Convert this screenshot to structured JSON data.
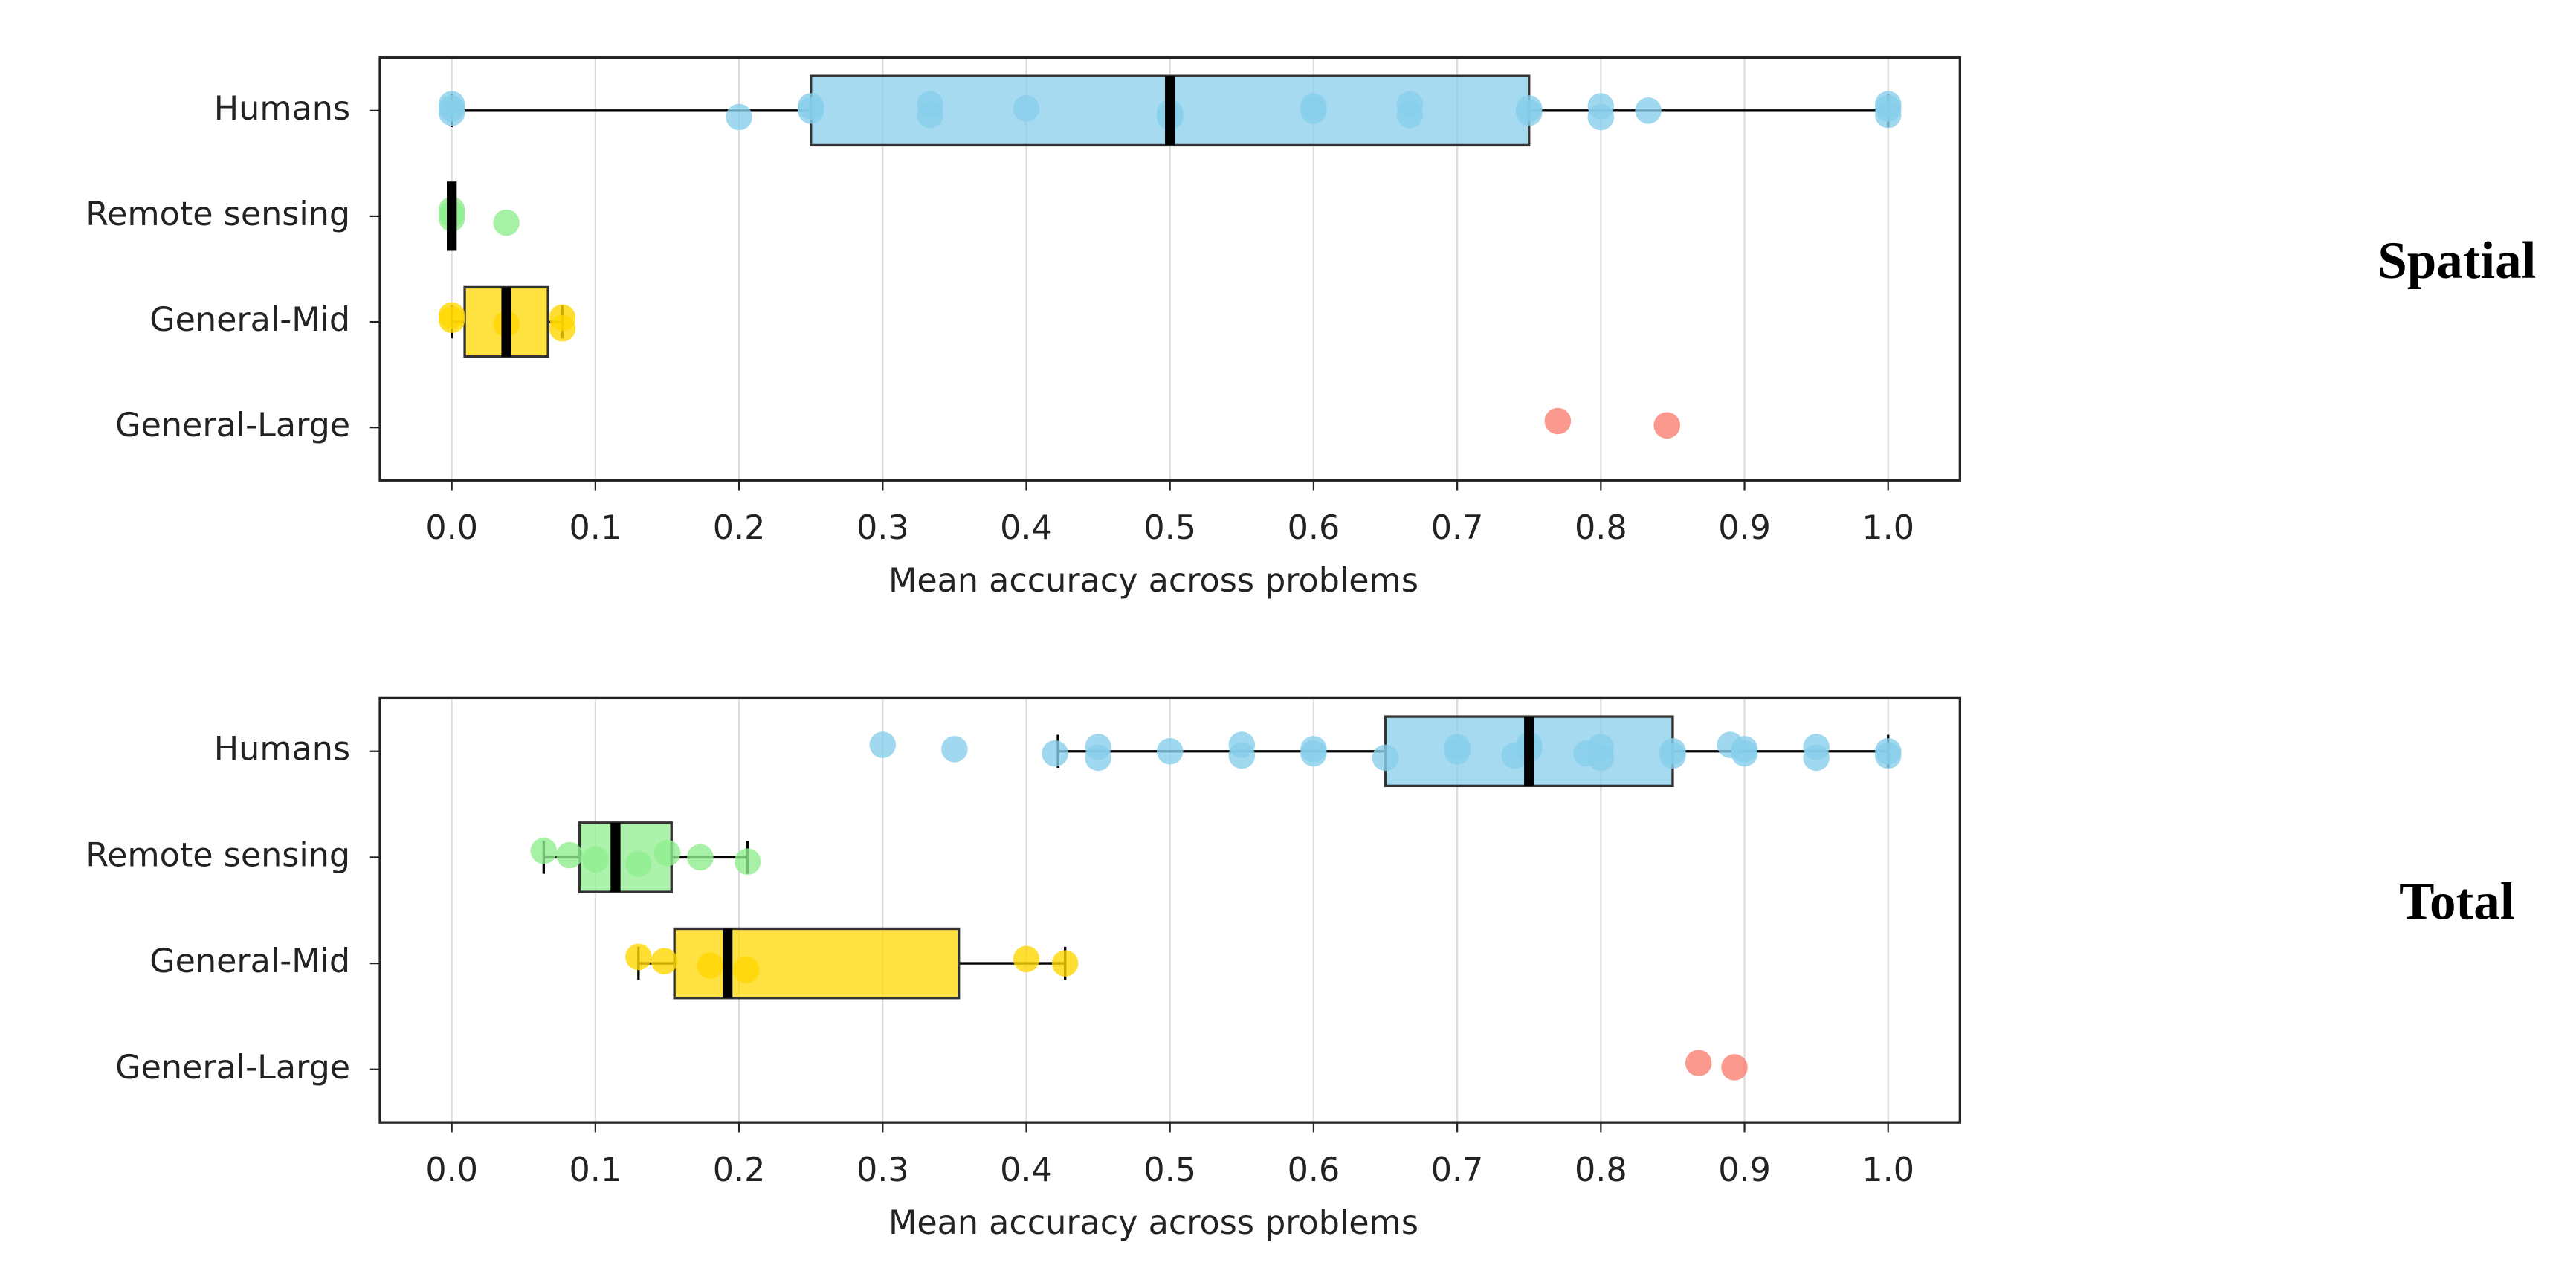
{
  "chart_data": [
    {
      "type": "box",
      "label": "Spatial",
      "xlabel": "Mean accuracy across problems",
      "categories": [
        "General-Large",
        "General-Mid",
        "Remote sensing",
        "Humans"
      ],
      "xlim": [
        -0.05,
        1.05
      ],
      "xticks": [
        {
          "value": 0,
          "label": "0.0"
        },
        0.1,
        0.2,
        0.3,
        0.4,
        0.5,
        0.6,
        0.7,
        0.8,
        0.9,
        {
          "value": 1,
          "label": "1.0"
        }
      ],
      "grid": true,
      "boxes": [
        {
          "color": "#fa8072",
          "points": [
            0.77,
            0.846
          ]
        },
        {
          "color": "#ffd700",
          "whislo": 0,
          "q1": 0.009,
          "median": 0.038,
          "q3": 0.067,
          "whishi": 0.077,
          "points": [
            0,
            0,
            0.038,
            0.077,
            0.077
          ]
        },
        {
          "color": "#90ee90",
          "whislo": 0,
          "q1": 0,
          "median": 0,
          "q3": 0,
          "whishi": 0,
          "points": [
            0,
            0,
            0,
            0.038
          ]
        },
        {
          "color": "#87ceeb",
          "whislo": 0,
          "q1": 0.25,
          "median": 0.5,
          "q3": 0.75,
          "whishi": 1,
          "points": [
            0,
            0,
            0,
            0.2,
            0.25,
            0.25,
            0.333,
            0.333,
            0.4,
            0.5,
            0.5,
            0.6,
            0.6,
            0.667,
            0.667,
            0.75,
            0.75,
            0.8,
            0.8,
            0.833,
            1,
            1,
            1
          ]
        }
      ]
    },
    {
      "type": "box",
      "label": "Total",
      "xlabel": "Mean accuracy across problems",
      "categories": [
        "General-Large",
        "General-Mid",
        "Remote sensing",
        "Humans"
      ],
      "xlim": [
        -0.05,
        1.05
      ],
      "xticks": [
        {
          "value": 0,
          "label": "0.0"
        },
        0.1,
        0.2,
        0.3,
        0.4,
        0.5,
        0.6,
        0.7,
        0.8,
        0.9,
        {
          "value": 1,
          "label": "1.0"
        }
      ],
      "grid": true,
      "boxes": [
        {
          "color": "#fa8072",
          "points": [
            0.868,
            0.893
          ]
        },
        {
          "color": "#ffd700",
          "whislo": 0.13,
          "q1": 0.155,
          "median": 0.192,
          "q3": 0.353,
          "whishi": 0.427,
          "points": [
            0.13,
            0.148,
            0.18,
            0.205,
            0.4,
            0.427
          ]
        },
        {
          "color": "#90ee90",
          "whislo": 0.064,
          "q1": 0.089,
          "median": 0.114,
          "q3": 0.153,
          "whishi": 0.206,
          "points": [
            0.064,
            0.082,
            0.1,
            0.13,
            0.15,
            0.173,
            0.206
          ]
        },
        {
          "color": "#87ceeb",
          "whislo": 0.422,
          "q1": 0.65,
          "median": 0.75,
          "q3": 0.85,
          "whishi": 1,
          "points": [
            0.3,
            0.35,
            0.42,
            0.45,
            0.45,
            0.5,
            0.55,
            0.55,
            0.6,
            0.6,
            0.65,
            0.7,
            0.7,
            0.74,
            0.75,
            0.75,
            0.79,
            0.8,
            0.8,
            0.85,
            0.85,
            0.89,
            0.9,
            0.9,
            0.95,
            0.95,
            1,
            1
          ]
        }
      ]
    }
  ]
}
